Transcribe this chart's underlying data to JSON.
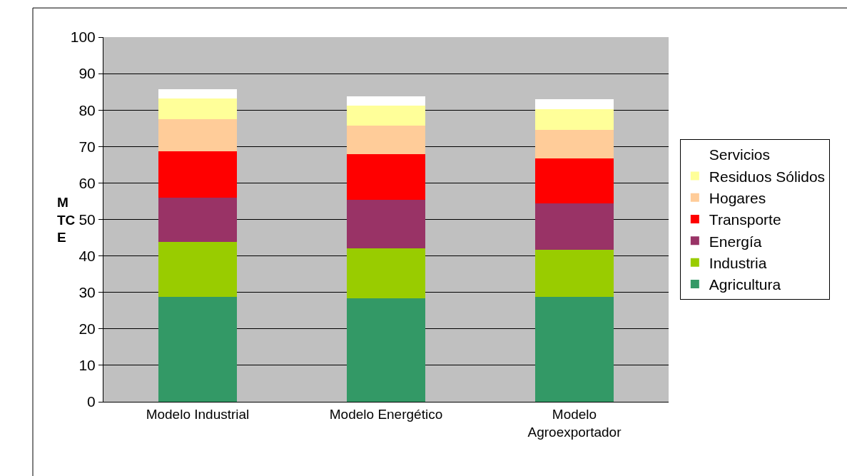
{
  "chart_data": {
    "type": "bar",
    "stacked": true,
    "ylabel": "MTCE",
    "categories": [
      "Modelo Industrial",
      "Modelo Energético",
      "Modelo Agroexportador"
    ],
    "series": [
      {
        "name": "Agricultura",
        "color": "#339966",
        "values": [
          28.7,
          28.3,
          28.7
        ]
      },
      {
        "name": "Industria",
        "color": "#99cc00",
        "values": [
          15.1,
          13.7,
          12.9
        ]
      },
      {
        "name": "Energía",
        "color": "#993366",
        "values": [
          12.1,
          13.4,
          12.9
        ]
      },
      {
        "name": "Transporte",
        "color": "#ff0000",
        "values": [
          12.7,
          12.5,
          12.2
        ]
      },
      {
        "name": "Hogares",
        "color": "#ffcc99",
        "values": [
          8.8,
          7.9,
          7.8
        ]
      },
      {
        "name": "Residuos Sólidos",
        "color": "#ffff99",
        "values": [
          5.7,
          5.5,
          5.7
        ]
      },
      {
        "name": "Servicios",
        "color": "#ffffff",
        "values": [
          2.7,
          2.5,
          2.8
        ]
      }
    ],
    "ylim": [
      0,
      100
    ],
    "yticks": [
      0,
      10,
      20,
      30,
      40,
      50,
      60,
      70,
      80,
      90,
      100
    ],
    "grid": "y",
    "legend": "right"
  }
}
